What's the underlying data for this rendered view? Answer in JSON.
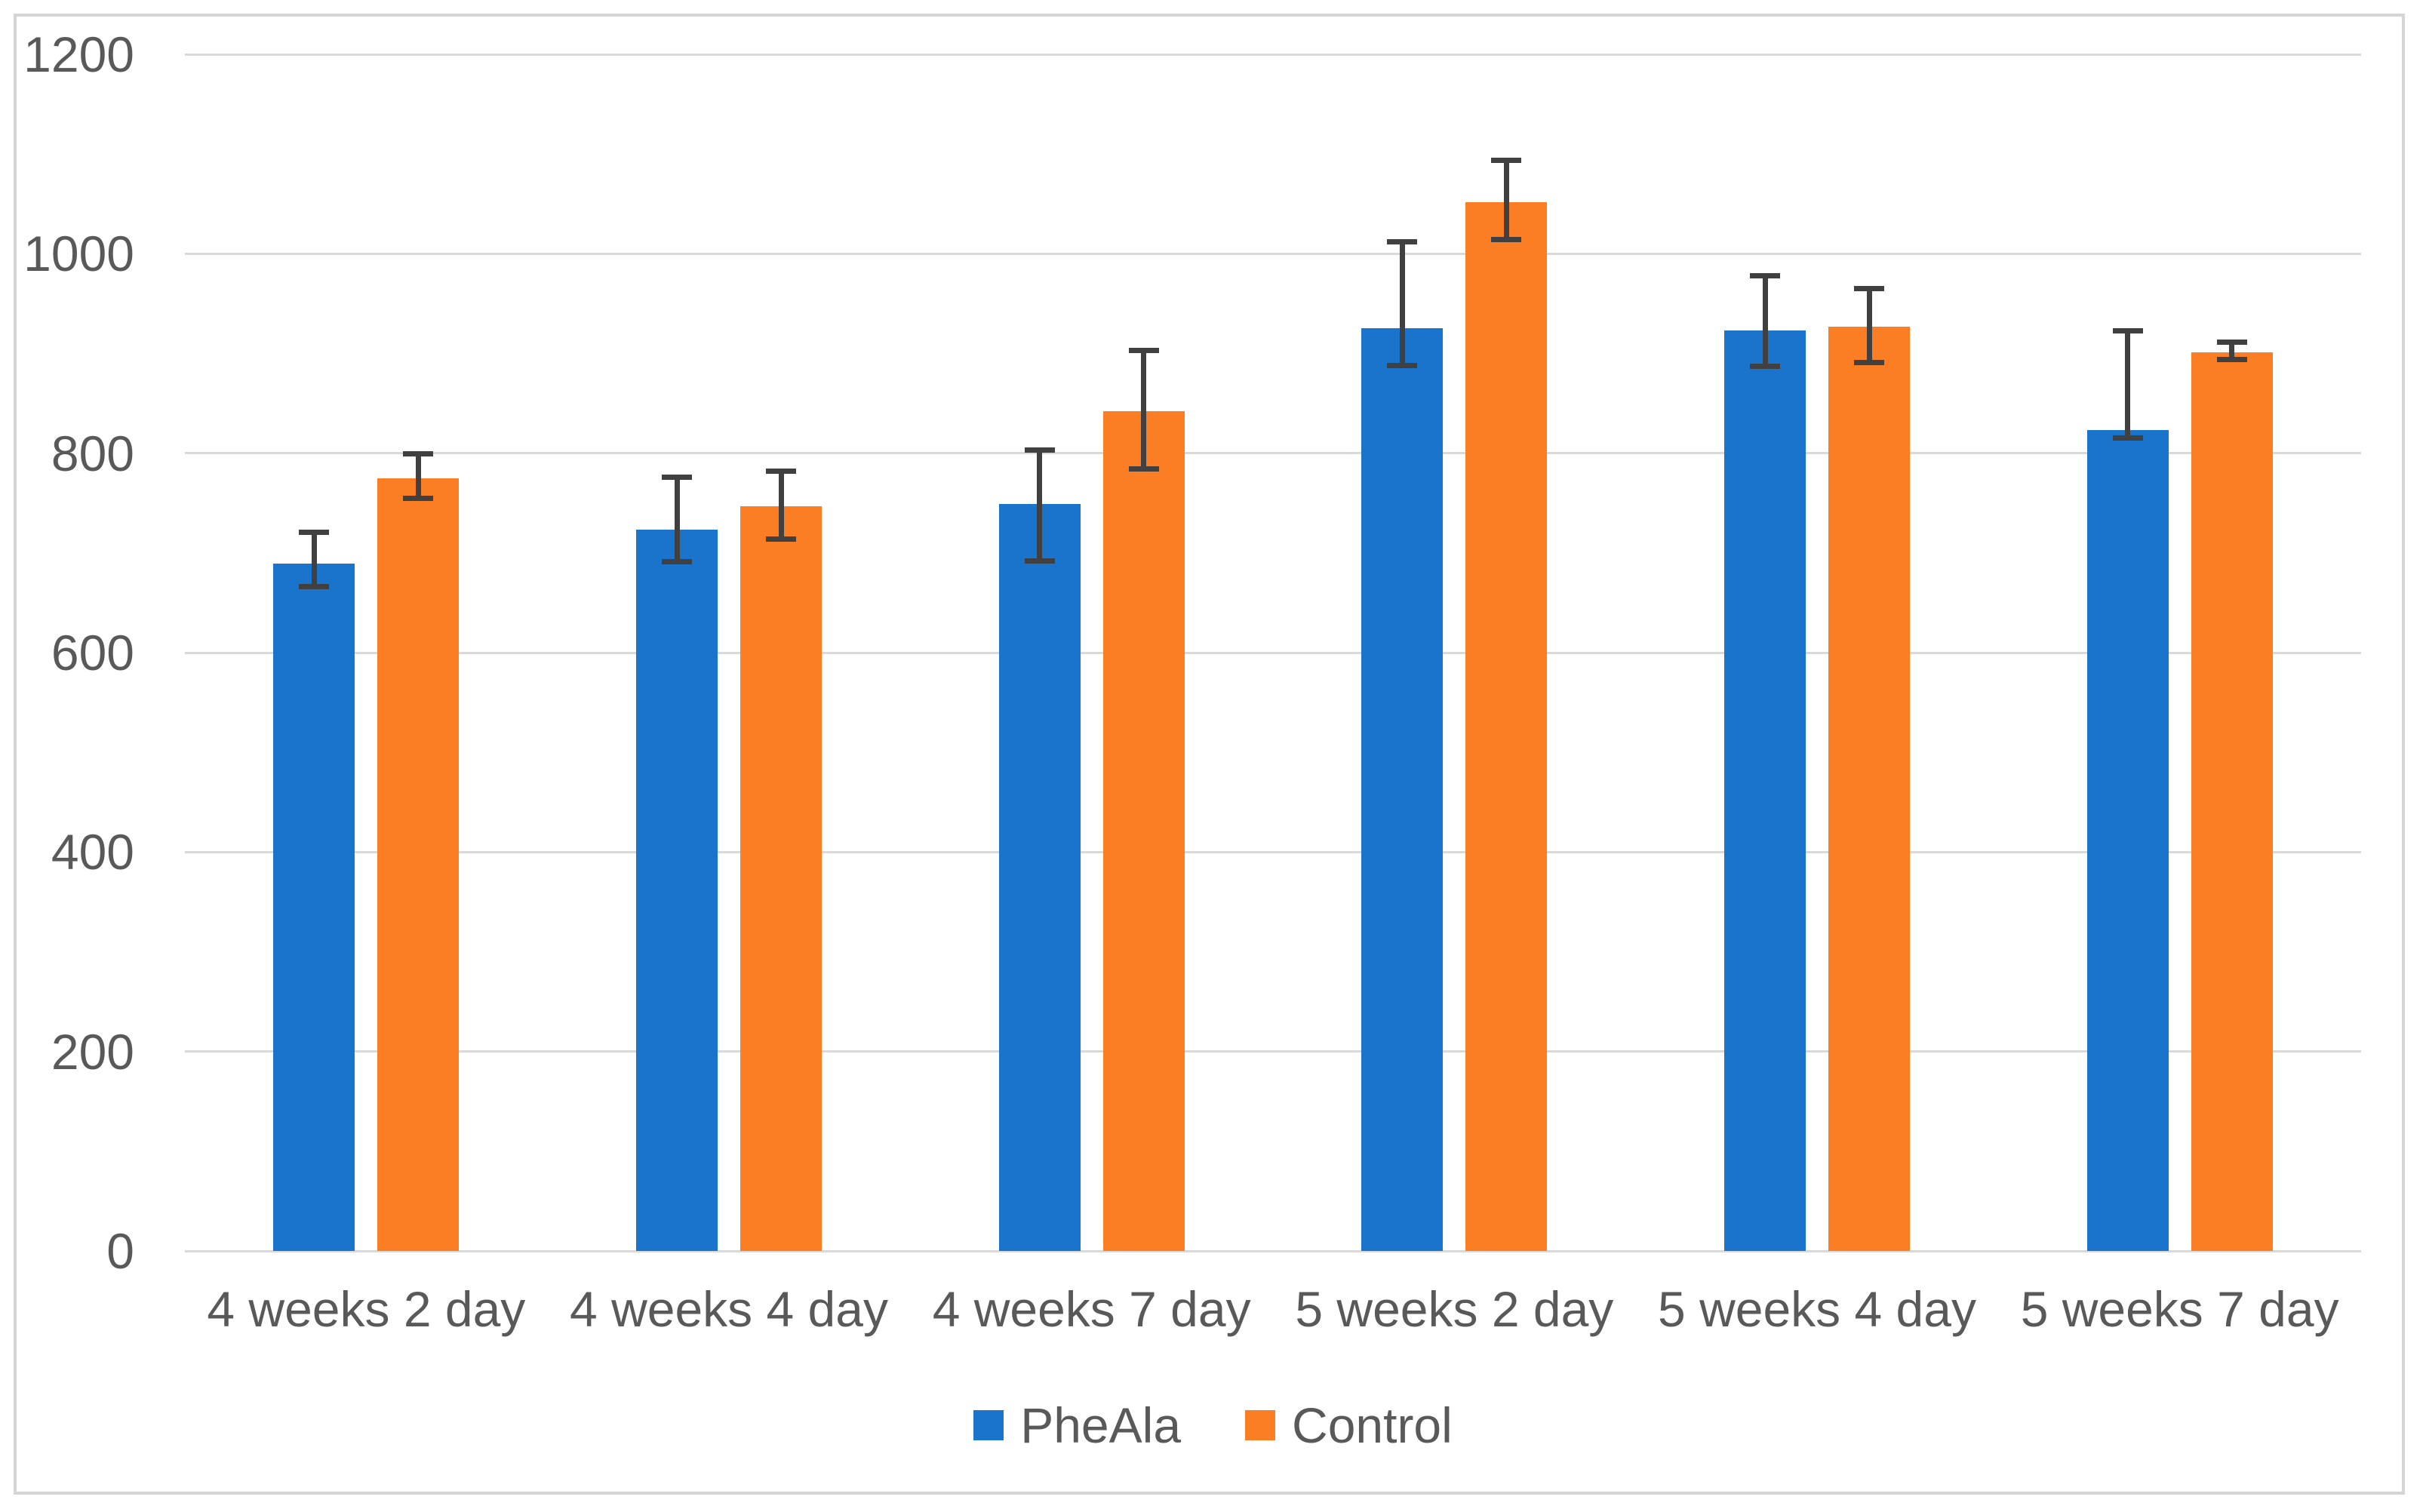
{
  "chart_data": {
    "type": "bar",
    "title": "",
    "xlabel": "",
    "ylabel": "",
    "categories": [
      "4 weeks 2 day",
      "4 weeks 4 day",
      "4 weeks 7 day",
      "5 weeks 2 day",
      "5 weeks 4 day",
      "5 weeks 7 day"
    ],
    "series": [
      {
        "name": "PheAla",
        "color": "#1B74CC",
        "values": [
          689,
          723,
          749,
          925,
          923,
          823
        ],
        "err_up": [
          32,
          53,
          54,
          87,
          55,
          100
        ],
        "err_down": [
          23,
          32,
          57,
          37,
          36,
          8
        ]
      },
      {
        "name": "Control",
        "color": "#FC7E24",
        "values": [
          775,
          747,
          842,
          1052,
          927,
          901
        ],
        "err_up": [
          24,
          35,
          61,
          42,
          38,
          10
        ],
        "err_down": [
          20,
          33,
          58,
          38,
          36,
          7
        ]
      }
    ],
    "ylim": [
      0,
      1200
    ],
    "yticks": [
      0,
      200,
      400,
      600,
      800,
      1000,
      1200
    ],
    "ytick_labels": [
      "0",
      "200",
      "400",
      "600",
      "800",
      "1000",
      "1200"
    ],
    "grid": "horizontal",
    "legend_position": "bottom",
    "error_bars": true
  },
  "style": {
    "background": "#FFFFFF",
    "frame_border_color": "#D5D5D5",
    "gridline_color": "#D9D9D9",
    "axis_text_color": "#595959",
    "error_bar_color": "#404040"
  }
}
